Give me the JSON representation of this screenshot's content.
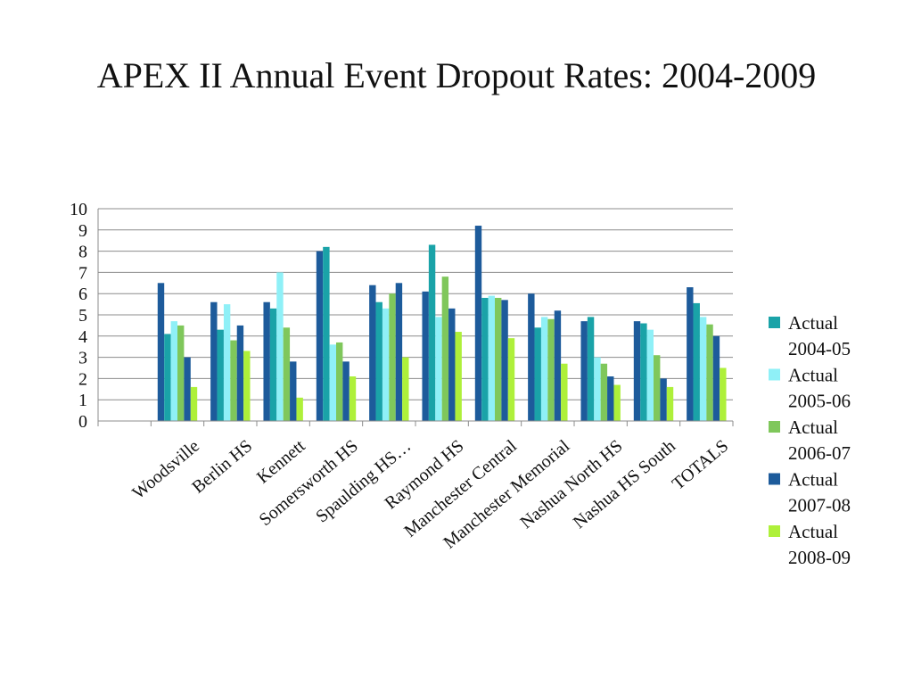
{
  "slide": {
    "title": "APEX II Annual Event Dropout Rates: 2004-2009"
  },
  "chart_data": {
    "type": "bar",
    "title": "APEX II Annual Event Dropout Rates: 2004-2009",
    "xlabel": "",
    "ylabel": "",
    "ylim": [
      0,
      10
    ],
    "yticks": [
      0,
      1,
      2,
      3,
      4,
      5,
      6,
      7,
      8,
      9,
      10
    ],
    "grid": true,
    "legend_position": "right",
    "categories": [
      "",
      "Woodsville",
      "Berlin HS",
      "Kennett",
      "Somersworth HS",
      "Spaulding HS…",
      "Raymond HS",
      "Manchester Central",
      "Manchester Memorial",
      "Nashua North HS",
      "Nashua HS South",
      "TOTALS"
    ],
    "series": [
      {
        "name": "Actual 2007-08 (first)",
        "legend": false,
        "color": "#1d5b9b",
        "values": [
          null,
          6.5,
          5.6,
          5.6,
          8.0,
          6.4,
          6.1,
          9.2,
          6.0,
          4.7,
          4.7,
          6.3
        ]
      },
      {
        "name": "Actual 2004-05",
        "legend_lines": [
          "Actual",
          "2004-05"
        ],
        "legend": true,
        "color": "#1aa3a8",
        "values": [
          null,
          4.1,
          4.3,
          5.3,
          8.2,
          5.6,
          8.3,
          5.8,
          4.4,
          4.9,
          4.6,
          5.55
        ]
      },
      {
        "name": "Actual 2005-06",
        "legend_lines": [
          "Actual",
          "2005-06"
        ],
        "legend": true,
        "color": "#8ff0f7",
        "values": [
          null,
          4.7,
          5.5,
          7.0,
          3.6,
          5.3,
          4.9,
          5.9,
          4.9,
          3.0,
          4.3,
          4.9
        ]
      },
      {
        "name": "Actual 2006-07",
        "legend_lines": [
          "Actual",
          "2006-07"
        ],
        "legend": true,
        "color": "#7fc75b",
        "values": [
          null,
          4.5,
          3.8,
          4.4,
          3.7,
          6.0,
          6.8,
          5.8,
          4.8,
          2.7,
          3.1,
          4.55
        ]
      },
      {
        "name": "Actual 2007-08",
        "legend_lines": [
          "Actual",
          "2007-08"
        ],
        "legend": true,
        "color": "#1d5b9b",
        "values": [
          null,
          3.0,
          4.5,
          2.8,
          2.8,
          6.5,
          5.3,
          5.7,
          5.2,
          2.1,
          2.0,
          4.0
        ]
      },
      {
        "name": "Actual 2008-09",
        "legend_lines": [
          "Actual",
          "2008-09"
        ],
        "legend": true,
        "color": "#aef03a",
        "values": [
          null,
          1.6,
          3.3,
          1.1,
          2.1,
          3.0,
          4.2,
          3.9,
          2.7,
          1.7,
          1.6,
          2.5
        ]
      }
    ]
  }
}
